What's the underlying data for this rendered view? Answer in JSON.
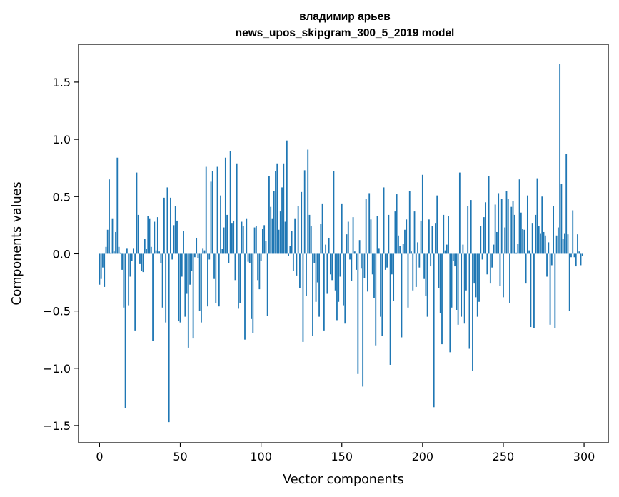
{
  "chart_data": {
    "type": "bar",
    "title": [
      "владимир арьев",
      "news_upos_skipgram_300_5_2019 model"
    ],
    "xlabel": "Vector components",
    "ylabel": "Components values",
    "xlim": [
      -13,
      315
    ],
    "ylim": [
      -1.65,
      1.83
    ],
    "xticks": [
      0,
      50,
      100,
      150,
      200,
      250,
      300
    ],
    "yticks": [
      -1.5,
      -1.0,
      -0.5,
      0.0,
      0.5,
      1.0,
      1.5
    ],
    "ytick_labels": [
      "−1.5",
      "−1.0",
      "−0.5",
      "0.0",
      "0.5",
      "1.0",
      "1.5"
    ],
    "grid": false,
    "bar_color": "#1f77b4",
    "categories_range": [
      0,
      299
    ],
    "values": [
      -0.27,
      -0.22,
      -0.12,
      -0.29,
      0.06,
      0.21,
      0.65,
      0.01,
      0.31,
      0.02,
      0.19,
      0.84,
      0.06,
      0.01,
      -0.14,
      -0.47,
      -1.35,
      0.05,
      -0.45,
      -0.2,
      -0.06,
      0.05,
      -0.67,
      0.71,
      0.34,
      -0.09,
      -0.15,
      -0.16,
      0.13,
      0.04,
      0.33,
      0.31,
      0.06,
      -0.76,
      0.28,
      0.03,
      0.32,
      0.02,
      -0.08,
      -0.47,
      0.49,
      -0.6,
      0.58,
      -1.47,
      0.49,
      -0.05,
      0.25,
      0.42,
      0.29,
      -0.59,
      -0.6,
      -0.2,
      0.2,
      -0.55,
      -0.35,
      -0.82,
      -0.27,
      -0.15,
      -0.74,
      -0.03,
      0.14,
      -0.04,
      -0.5,
      -0.6,
      0.05,
      0.03,
      0.76,
      -0.46,
      -0.05,
      0.63,
      0.72,
      -0.22,
      -0.43,
      0.76,
      -0.46,
      0.51,
      0.04,
      0.23,
      0.84,
      0.34,
      -0.08,
      0.9,
      0.27,
      0.29,
      -0.23,
      0.79,
      -0.48,
      -0.43,
      0.28,
      0.24,
      -0.75,
      0.31,
      -0.07,
      -0.08,
      -0.57,
      -0.69,
      0.23,
      0.24,
      -0.23,
      -0.31,
      -0.06,
      0.22,
      0.25,
      0.11,
      -0.54,
      0.68,
      0.41,
      0.31,
      0.55,
      0.72,
      0.79,
      0.21,
      0.37,
      0.58,
      0.79,
      0.28,
      0.99,
      -0.02,
      0.07,
      0.2,
      -0.15,
      0.31,
      -0.19,
      0.42,
      -0.3,
      0.54,
      -0.77,
      0.73,
      -0.37,
      0.91,
      0.34,
      0.24,
      -0.72,
      -0.08,
      -0.42,
      -0.25,
      -0.55,
      0.26,
      0.44,
      -0.67,
      0.08,
      -0.35,
      0.14,
      -0.18,
      -0.23,
      0.72,
      -0.32,
      -0.58,
      -0.42,
      -0.2,
      0.44,
      -0.45,
      -0.61,
      0.17,
      0.28,
      -0.05,
      -0.24,
      0.32,
      0.02,
      -0.14,
      -1.05,
      0.12,
      -0.13,
      -1.16,
      -0.21,
      0.48,
      -0.33,
      0.53,
      0.3,
      -0.18,
      -0.39,
      -0.8,
      0.33,
      0.05,
      -0.55,
      -0.72,
      0.58,
      -0.14,
      -0.12,
      0.34,
      -0.97,
      -0.18,
      -0.41,
      0.37,
      0.52,
      0.16,
      0.07,
      -0.73,
      0.09,
      0.21,
      0.3,
      -0.47,
      0.55,
      0.02,
      -0.32,
      0.37,
      -0.29,
      0.1,
      -0.12,
      0.29,
      0.69,
      -0.22,
      -0.37,
      -0.55,
      0.3,
      -0.11,
      0.24,
      -1.34,
      0.27,
      0.51,
      -0.3,
      -0.52,
      -0.79,
      0.34,
      0.03,
      0.08,
      0.33,
      -0.86,
      -0.47,
      -0.06,
      -0.11,
      -0.49,
      -0.62,
      0.71,
      -0.55,
      0.08,
      -0.61,
      -0.32,
      0.42,
      -0.83,
      0.47,
      -1.02,
      -0.26,
      -0.38,
      -0.55,
      -0.42,
      0.24,
      -0.05,
      0.32,
      0.45,
      -0.18,
      0.68,
      -0.26,
      -0.12,
      0.08,
      0.43,
      0.19,
      0.53,
      -0.28,
      0.48,
      -0.38,
      0.23,
      0.55,
      0.48,
      -0.43,
      0.41,
      0.46,
      0.34,
      0.01,
      0.09,
      0.65,
      0.36,
      0.22,
      0.21,
      -0.26,
      0.51,
      0.03,
      -0.64,
      0.27,
      -0.65,
      0.34,
      0.66,
      0.24,
      0.18,
      0.5,
      0.19,
      0.16,
      -0.2,
      0.1,
      -0.62,
      -0.1,
      0.42,
      -0.65,
      0.16,
      0.23,
      1.66,
      0.61,
      0.13,
      0.18,
      0.87,
      0.17,
      -0.5,
      -0.03,
      0.38,
      -0.03,
      -0.11,
      0.17,
      0.02,
      -0.1,
      -0.02
    ]
  }
}
